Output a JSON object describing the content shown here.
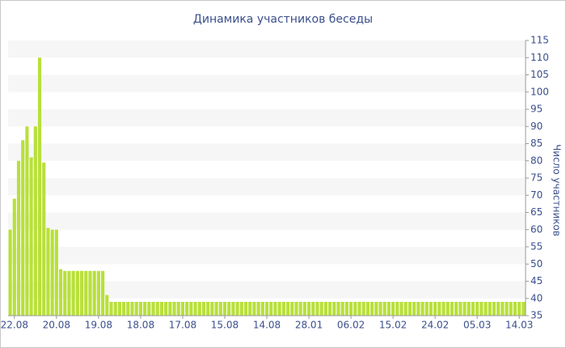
{
  "chart_data": {
    "type": "bar",
    "title": "Динамика участников беседы",
    "y_label": "Число участников",
    "categories": [
      null,
      "22.08",
      null,
      null,
      null,
      null,
      null,
      null,
      null,
      null,
      null,
      "20.08",
      null,
      null,
      null,
      null,
      null,
      null,
      null,
      null,
      null,
      "19.08",
      null,
      null,
      null,
      null,
      null,
      null,
      null,
      null,
      null,
      "18.08",
      null,
      null,
      null,
      null,
      null,
      null,
      null,
      null,
      null,
      "17.08",
      null,
      null,
      null,
      null,
      null,
      null,
      null,
      null,
      null,
      "15.08",
      null,
      null,
      null,
      null,
      null,
      null,
      null,
      null,
      null,
      "14.08",
      null,
      null,
      null,
      null,
      null,
      null,
      null,
      null,
      null,
      "28.01",
      null,
      null,
      null,
      null,
      null,
      null,
      null,
      null,
      null,
      "06.02",
      null,
      null,
      null,
      null,
      null,
      null,
      null,
      null,
      null,
      "15.02",
      null,
      null,
      null,
      null,
      null,
      null,
      null,
      null,
      null,
      "24.02",
      null,
      null,
      null,
      null,
      null,
      null,
      null,
      null,
      null,
      "05.03",
      null,
      null,
      null,
      null,
      null,
      null,
      null,
      null,
      null,
      "14.03",
      null
    ],
    "values": [
      60,
      69,
      80,
      86,
      90,
      81,
      90,
      110,
      79.5,
      60.5,
      60,
      60,
      48.5,
      48,
      48,
      48,
      48,
      48,
      48,
      48,
      48,
      48,
      48,
      41,
      39,
      39,
      39,
      39,
      39,
      39,
      39,
      39,
      39,
      39,
      39,
      39,
      39,
      39,
      39,
      39,
      39,
      39,
      39,
      39,
      39,
      39,
      39,
      39,
      39,
      39,
      39,
      39,
      39,
      39,
      39,
      39,
      39,
      39,
      39,
      39,
      39,
      39,
      39,
      39,
      39,
      39,
      39,
      39,
      39,
      39,
      39,
      39,
      39,
      39,
      39,
      39,
      39,
      39,
      39,
      39,
      39,
      39,
      39,
      39,
      39,
      39,
      39,
      39,
      39,
      39,
      39,
      39,
      39,
      39,
      39,
      39,
      39,
      39,
      39,
      39,
      39,
      39,
      39,
      39,
      39,
      39,
      39,
      39,
      39,
      39,
      39,
      39,
      39,
      39,
      39,
      39,
      39,
      39,
      39,
      39,
      39,
      39,
      39
    ],
    "color": "#b8e03a",
    "ylim": [
      35,
      115
    ],
    "yticks": [
      35,
      40,
      45,
      50,
      55,
      60,
      65,
      70,
      75,
      80,
      85,
      90,
      95,
      100,
      105,
      110,
      115
    ],
    "grid": true,
    "y_axis_side": "right"
  }
}
